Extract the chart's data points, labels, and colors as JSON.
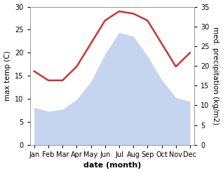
{
  "months": [
    "Jan",
    "Feb",
    "Mar",
    "Apr",
    "May",
    "Jun",
    "Jul",
    "Aug",
    "Sep",
    "Oct",
    "Nov",
    "Dec"
  ],
  "temp": [
    16.0,
    14.0,
    14.0,
    17.0,
    22.0,
    27.0,
    29.0,
    28.5,
    27.0,
    22.0,
    17.0,
    20.0
  ],
  "precip": [
    9.5,
    8.5,
    9.0,
    11.5,
    16.0,
    23.0,
    28.5,
    27.5,
    22.5,
    16.5,
    12.0,
    11.0
  ],
  "temp_color": "#cc3333",
  "precip_color": "#c5d5f0",
  "temp_ylim": [
    0,
    30
  ],
  "precip_ylim": [
    0,
    35
  ],
  "temp_yticks": [
    0,
    5,
    10,
    15,
    20,
    25,
    30
  ],
  "precip_yticks": [
    0,
    5,
    10,
    15,
    20,
    25,
    30,
    35
  ],
  "ylabel_left": "max temp (C)",
  "ylabel_right": "med. precipitation (kg/m2)",
  "xlabel": "date (month)",
  "background_color": "#ffffff",
  "temp_linewidth": 1.8,
  "xlabel_fontsize": 8,
  "ylabel_fontsize": 7.5,
  "tick_fontsize": 7
}
